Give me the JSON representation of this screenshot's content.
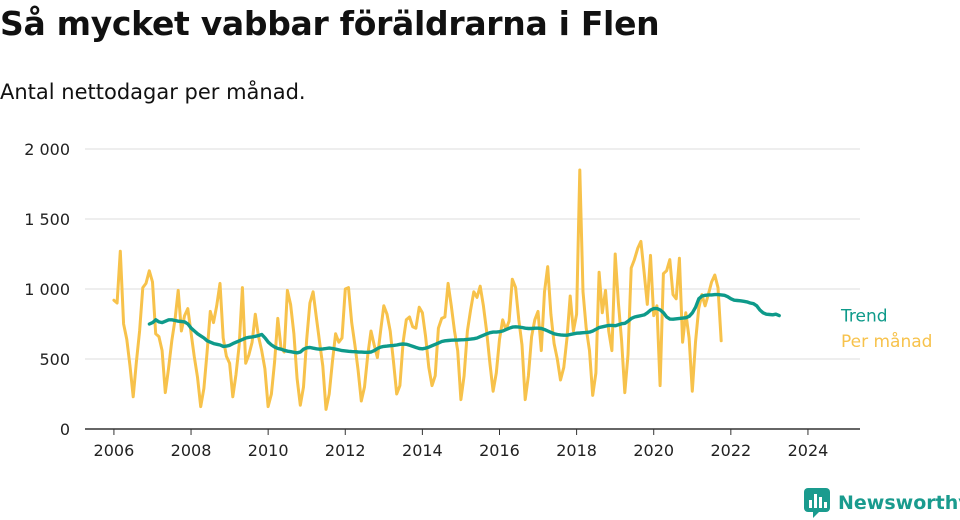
{
  "header": {
    "title": "Så mycket vabbar föräldrarna i Flen",
    "subtitle": "Antal nettodagar per månad."
  },
  "brand": {
    "name": "Newsworthy",
    "icon": "bar-chart-logo-icon",
    "color": "#1a9b8e"
  },
  "colors": {
    "trend": "#0e9a8a",
    "monthly": "#f7c24b",
    "grid": "#dddddd",
    "axis": "#333333"
  },
  "chart_data": {
    "type": "line",
    "title": "Så mycket vabbar föräldrarna i Flen",
    "subtitle": "Antal nettodagar per månad.",
    "xlabel": "",
    "ylabel": "",
    "xlim": [
      2005.25,
      2025.35
    ],
    "ylim": [
      0,
      2000
    ],
    "xticks": [
      2006,
      2008,
      2010,
      2012,
      2014,
      2016,
      2018,
      2020,
      2022,
      2024
    ],
    "xtick_labels": [
      "2006",
      "2008",
      "2010",
      "2012",
      "2014",
      "2016",
      "2018",
      "2020",
      "2022",
      "2024"
    ],
    "yticks": [
      0,
      500,
      1000,
      1500,
      2000
    ],
    "ytick_labels": [
      "0",
      "500",
      "1 000",
      "1 500",
      "2 000"
    ],
    "grid": true,
    "legend": "right-end-labels",
    "series": [
      {
        "name": "Per månad",
        "color": "#f7c24b",
        "x_start": 2006.0,
        "x_step_months": 1,
        "values": [
          920,
          900,
          1270,
          750,
          640,
          450,
          230,
          480,
          700,
          1010,
          1040,
          1130,
          1050,
          680,
          660,
          560,
          260,
          430,
          630,
          780,
          990,
          700,
          810,
          860,
          690,
          520,
          370,
          160,
          290,
          550,
          840,
          760,
          880,
          1040,
          650,
          520,
          470,
          230,
          390,
          600,
          1010,
          470,
          530,
          620,
          820,
          660,
          560,
          430,
          160,
          250,
          480,
          790,
          580,
          550,
          990,
          890,
          680,
          360,
          170,
          300,
          640,
          900,
          980,
          800,
          620,
          450,
          140,
          250,
          480,
          680,
          620,
          650,
          1000,
          1010,
          760,
          600,
          420,
          200,
          300,
          530,
          700,
          600,
          510,
          700,
          880,
          820,
          700,
          480,
          250,
          310,
          620,
          780,
          800,
          730,
          720,
          870,
          830,
          660,
          440,
          310,
          380,
          720,
          790,
          800,
          1040,
          880,
          700,
          560,
          210,
          380,
          700,
          850,
          980,
          940,
          1020,
          880,
          700,
          470,
          270,
          400,
          640,
          780,
          710,
          770,
          1070,
          1010,
          780,
          600,
          210,
          380,
          660,
          780,
          840,
          560,
          980,
          1160,
          820,
          610,
          500,
          350,
          440,
          650,
          950,
          700,
          820,
          1850,
          980,
          720,
          560,
          240,
          400,
          1120,
          830,
          990,
          700,
          560,
          1250,
          900,
          630,
          260,
          530,
          1150,
          1210,
          1290,
          1340,
          1120,
          890,
          1240,
          810,
          880,
          310,
          1110,
          1130,
          1210,
          960,
          930,
          1220,
          620,
          830,
          650,
          270,
          620,
          860,
          960,
          880,
          960,
          1050,
          1100,
          1010,
          630
        ]
      },
      {
        "name": "Trend",
        "color": "#0e9a8a",
        "x_start": 2006.92,
        "x_step_months": 1,
        "values": [
          750,
          760,
          780,
          765,
          760,
          770,
          780,
          780,
          775,
          770,
          768,
          765,
          750,
          720,
          700,
          680,
          665,
          650,
          630,
          620,
          610,
          605,
          600,
          590,
          592,
          598,
          610,
          620,
          630,
          640,
          650,
          655,
          658,
          662,
          668,
          675,
          650,
          620,
          600,
          585,
          575,
          570,
          562,
          556,
          552,
          548,
          544,
          550,
          570,
          580,
          582,
          577,
          573,
          570,
          572,
          575,
          578,
          575,
          570,
          565,
          560,
          558,
          555,
          553,
          552,
          550,
          549,
          548,
          548,
          550,
          560,
          575,
          585,
          590,
          592,
          595,
          597,
          600,
          605,
          607,
          605,
          598,
          590,
          582,
          575,
          573,
          578,
          585,
          595,
          605,
          615,
          625,
          630,
          632,
          634,
          635,
          636,
          637,
          638,
          640,
          642,
          645,
          650,
          660,
          670,
          680,
          688,
          692,
          692,
          695,
          700,
          710,
          720,
          728,
          730,
          728,
          725,
          720,
          718,
          718,
          720,
          720,
          718,
          710,
          700,
          690,
          680,
          675,
          672,
          670,
          670,
          675,
          680,
          684,
          686,
          688,
          690,
          692,
          700,
          712,
          725,
          730,
          735,
          740,
          740,
          738,
          745,
          752,
          755,
          770,
          790,
          800,
          805,
          810,
          815,
          830,
          850,
          860,
          860,
          850,
          830,
          800,
          785,
          784,
          787,
          790,
          792,
          795,
          805,
          830,
          870,
          930,
          950,
          955,
          958,
          958,
          960,
          960,
          958,
          955,
          945,
          930,
          920,
          918,
          916,
          912,
          908,
          900,
          895,
          880,
          850,
          830,
          820,
          818,
          816,
          820,
          810
        ]
      }
    ]
  }
}
